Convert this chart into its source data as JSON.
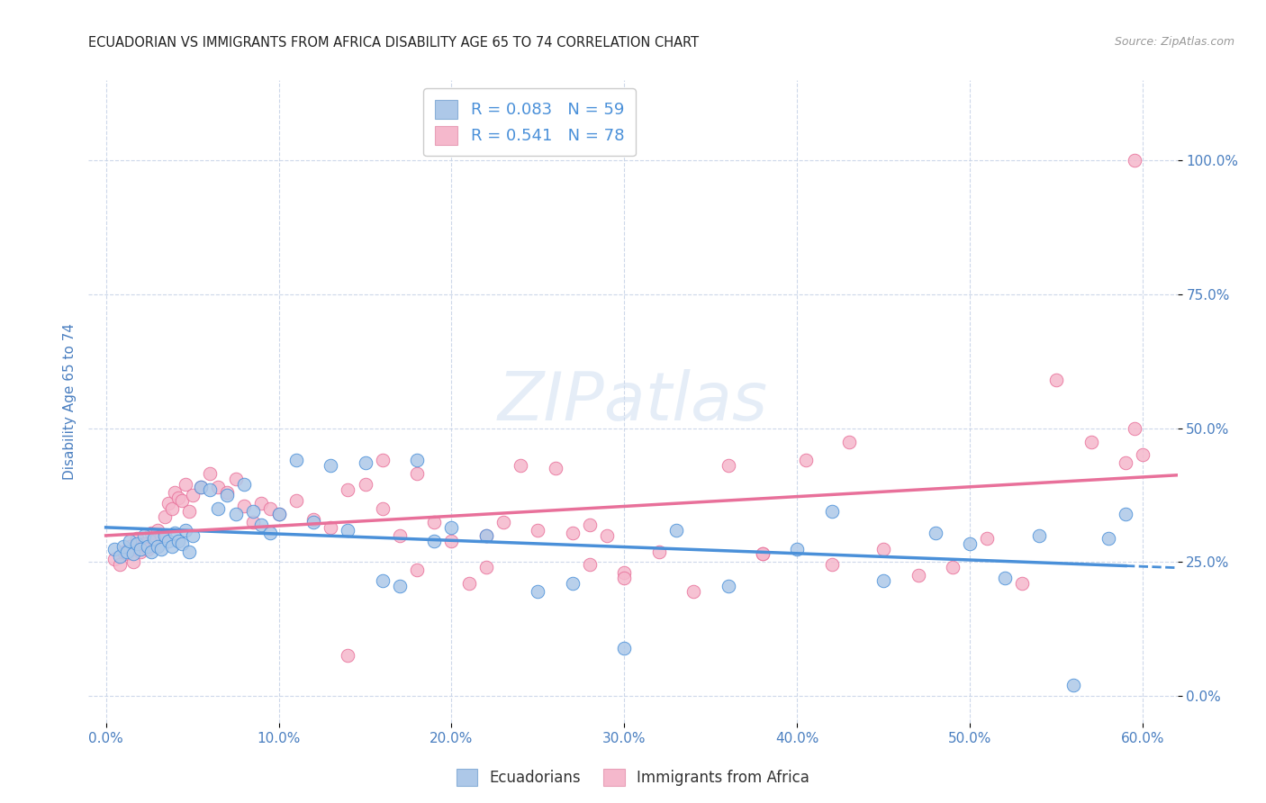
{
  "title": "ECUADORIAN VS IMMIGRANTS FROM AFRICA DISABILITY AGE 65 TO 74 CORRELATION CHART",
  "source": "Source: ZipAtlas.com",
  "xlabel_vals": [
    0,
    10,
    20,
    30,
    40,
    50,
    60
  ],
  "ylabel_vals": [
    0,
    25,
    50,
    75,
    100
  ],
  "xlim": [
    -1,
    62
  ],
  "ylim": [
    -5,
    115
  ],
  "blue_R": 0.083,
  "blue_N": 59,
  "pink_R": 0.541,
  "pink_N": 78,
  "blue_color": "#adc8e8",
  "pink_color": "#f5b8cc",
  "blue_line_color": "#4a90d9",
  "pink_line_color": "#e8709a",
  "legend_label_blue": "Ecuadorians",
  "legend_label_pink": "Immigrants from Africa",
  "watermark": "ZIPatlas",
  "grid_color": "#c8d4e8",
  "title_color": "#222222",
  "axis_tick_color": "#4a7fc0",
  "ylabel": "Disability Age 65 to 74",
  "blue_scatter_x": [
    0.5,
    0.8,
    1.0,
    1.2,
    1.4,
    1.6,
    1.8,
    2.0,
    2.2,
    2.4,
    2.6,
    2.8,
    3.0,
    3.2,
    3.4,
    3.6,
    3.8,
    4.0,
    4.2,
    4.4,
    4.6,
    4.8,
    5.0,
    5.5,
    6.0,
    6.5,
    7.0,
    7.5,
    8.0,
    8.5,
    9.0,
    9.5,
    10.0,
    11.0,
    12.0,
    13.0,
    14.0,
    15.0,
    16.0,
    17.0,
    18.0,
    19.0,
    20.0,
    22.0,
    25.0,
    27.0,
    30.0,
    33.0,
    36.0,
    40.0,
    42.0,
    45.0,
    48.0,
    50.0,
    52.0,
    54.0,
    56.0,
    58.0,
    59.0
  ],
  "blue_scatter_y": [
    27.5,
    26.0,
    28.0,
    27.0,
    29.0,
    26.5,
    28.5,
    27.5,
    30.0,
    28.0,
    27.0,
    29.5,
    28.0,
    27.5,
    30.0,
    29.0,
    28.0,
    30.5,
    29.0,
    28.5,
    31.0,
    27.0,
    30.0,
    39.0,
    38.5,
    35.0,
    37.5,
    34.0,
    39.5,
    34.5,
    32.0,
    30.5,
    34.0,
    44.0,
    32.5,
    43.0,
    31.0,
    43.5,
    21.5,
    20.5,
    44.0,
    29.0,
    31.5,
    30.0,
    19.5,
    21.0,
    9.0,
    31.0,
    20.5,
    27.5,
    34.5,
    21.5,
    30.5,
    28.5,
    22.0,
    30.0,
    2.0,
    29.5,
    34.0
  ],
  "pink_scatter_x": [
    0.5,
    0.8,
    1.0,
    1.2,
    1.4,
    1.6,
    1.8,
    2.0,
    2.2,
    2.4,
    2.6,
    2.8,
    3.0,
    3.2,
    3.4,
    3.6,
    3.8,
    4.0,
    4.2,
    4.4,
    4.6,
    4.8,
    5.0,
    5.5,
    6.0,
    6.5,
    7.0,
    7.5,
    8.0,
    8.5,
    9.0,
    9.5,
    10.0,
    11.0,
    12.0,
    13.0,
    14.0,
    15.0,
    16.0,
    17.0,
    18.0,
    19.0,
    20.0,
    21.0,
    22.0,
    23.0,
    24.0,
    25.0,
    26.0,
    27.0,
    28.0,
    29.0,
    30.0,
    32.0,
    34.0,
    36.0,
    38.0,
    40.5,
    43.0,
    45.0,
    47.0,
    49.0,
    51.0,
    53.0,
    55.0,
    57.0,
    59.0,
    59.5,
    60.0,
    14.0,
    16.0,
    18.0,
    22.0,
    28.0,
    30.0,
    38.0,
    42.0,
    59.5
  ],
  "pink_scatter_y": [
    25.5,
    24.5,
    27.0,
    26.5,
    28.0,
    25.0,
    29.5,
    27.0,
    28.5,
    27.5,
    30.5,
    29.0,
    31.0,
    30.0,
    33.5,
    36.0,
    35.0,
    38.0,
    37.0,
    36.5,
    39.5,
    34.5,
    37.5,
    39.0,
    41.5,
    39.0,
    38.0,
    40.5,
    35.5,
    32.5,
    36.0,
    35.0,
    34.0,
    36.5,
    33.0,
    31.5,
    38.5,
    39.5,
    35.0,
    30.0,
    41.5,
    32.5,
    29.0,
    21.0,
    24.0,
    32.5,
    43.0,
    31.0,
    42.5,
    30.5,
    24.5,
    30.0,
    23.0,
    27.0,
    19.5,
    43.0,
    26.5,
    44.0,
    47.5,
    27.5,
    22.5,
    24.0,
    29.5,
    21.0,
    59.0,
    47.5,
    43.5,
    50.0,
    45.0,
    7.5,
    44.0,
    23.5,
    30.0,
    32.0,
    22.0,
    26.5,
    24.5,
    100.0
  ]
}
